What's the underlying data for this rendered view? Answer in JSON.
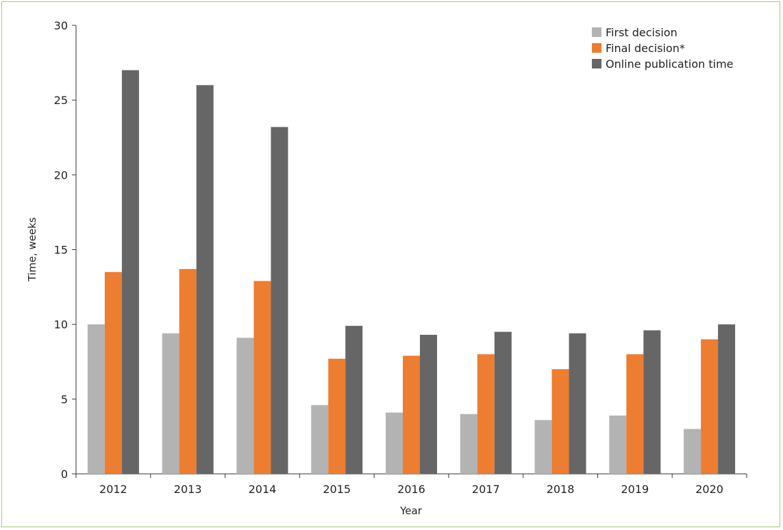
{
  "chart_data": {
    "type": "bar",
    "title": "",
    "xlabel": "Year",
    "ylabel": "Time, weeks",
    "ylim": [
      0,
      30
    ],
    "yticks": [
      0,
      5,
      10,
      15,
      20,
      25,
      30
    ],
    "grid": false,
    "legend_position": "top-right",
    "categories": [
      "2012",
      "2013",
      "2014",
      "2015",
      "2016",
      "2017",
      "2018",
      "2019",
      "2020"
    ],
    "series": [
      {
        "name": "First decision",
        "color": "#b3b3b3",
        "values": [
          10,
          9.4,
          9.1,
          4.6,
          4.1,
          4.0,
          3.6,
          3.9,
          3.0
        ]
      },
      {
        "name": "Final decision*",
        "color": "#ed7d31",
        "values": [
          13.5,
          13.7,
          12.9,
          7.7,
          7.9,
          8.0,
          7.0,
          8.0,
          9.0
        ]
      },
      {
        "name": "Online publication time",
        "color": "#666666",
        "values": [
          27.0,
          26.0,
          23.2,
          9.9,
          9.3,
          9.5,
          9.4,
          9.6,
          10.0
        ]
      }
    ]
  }
}
